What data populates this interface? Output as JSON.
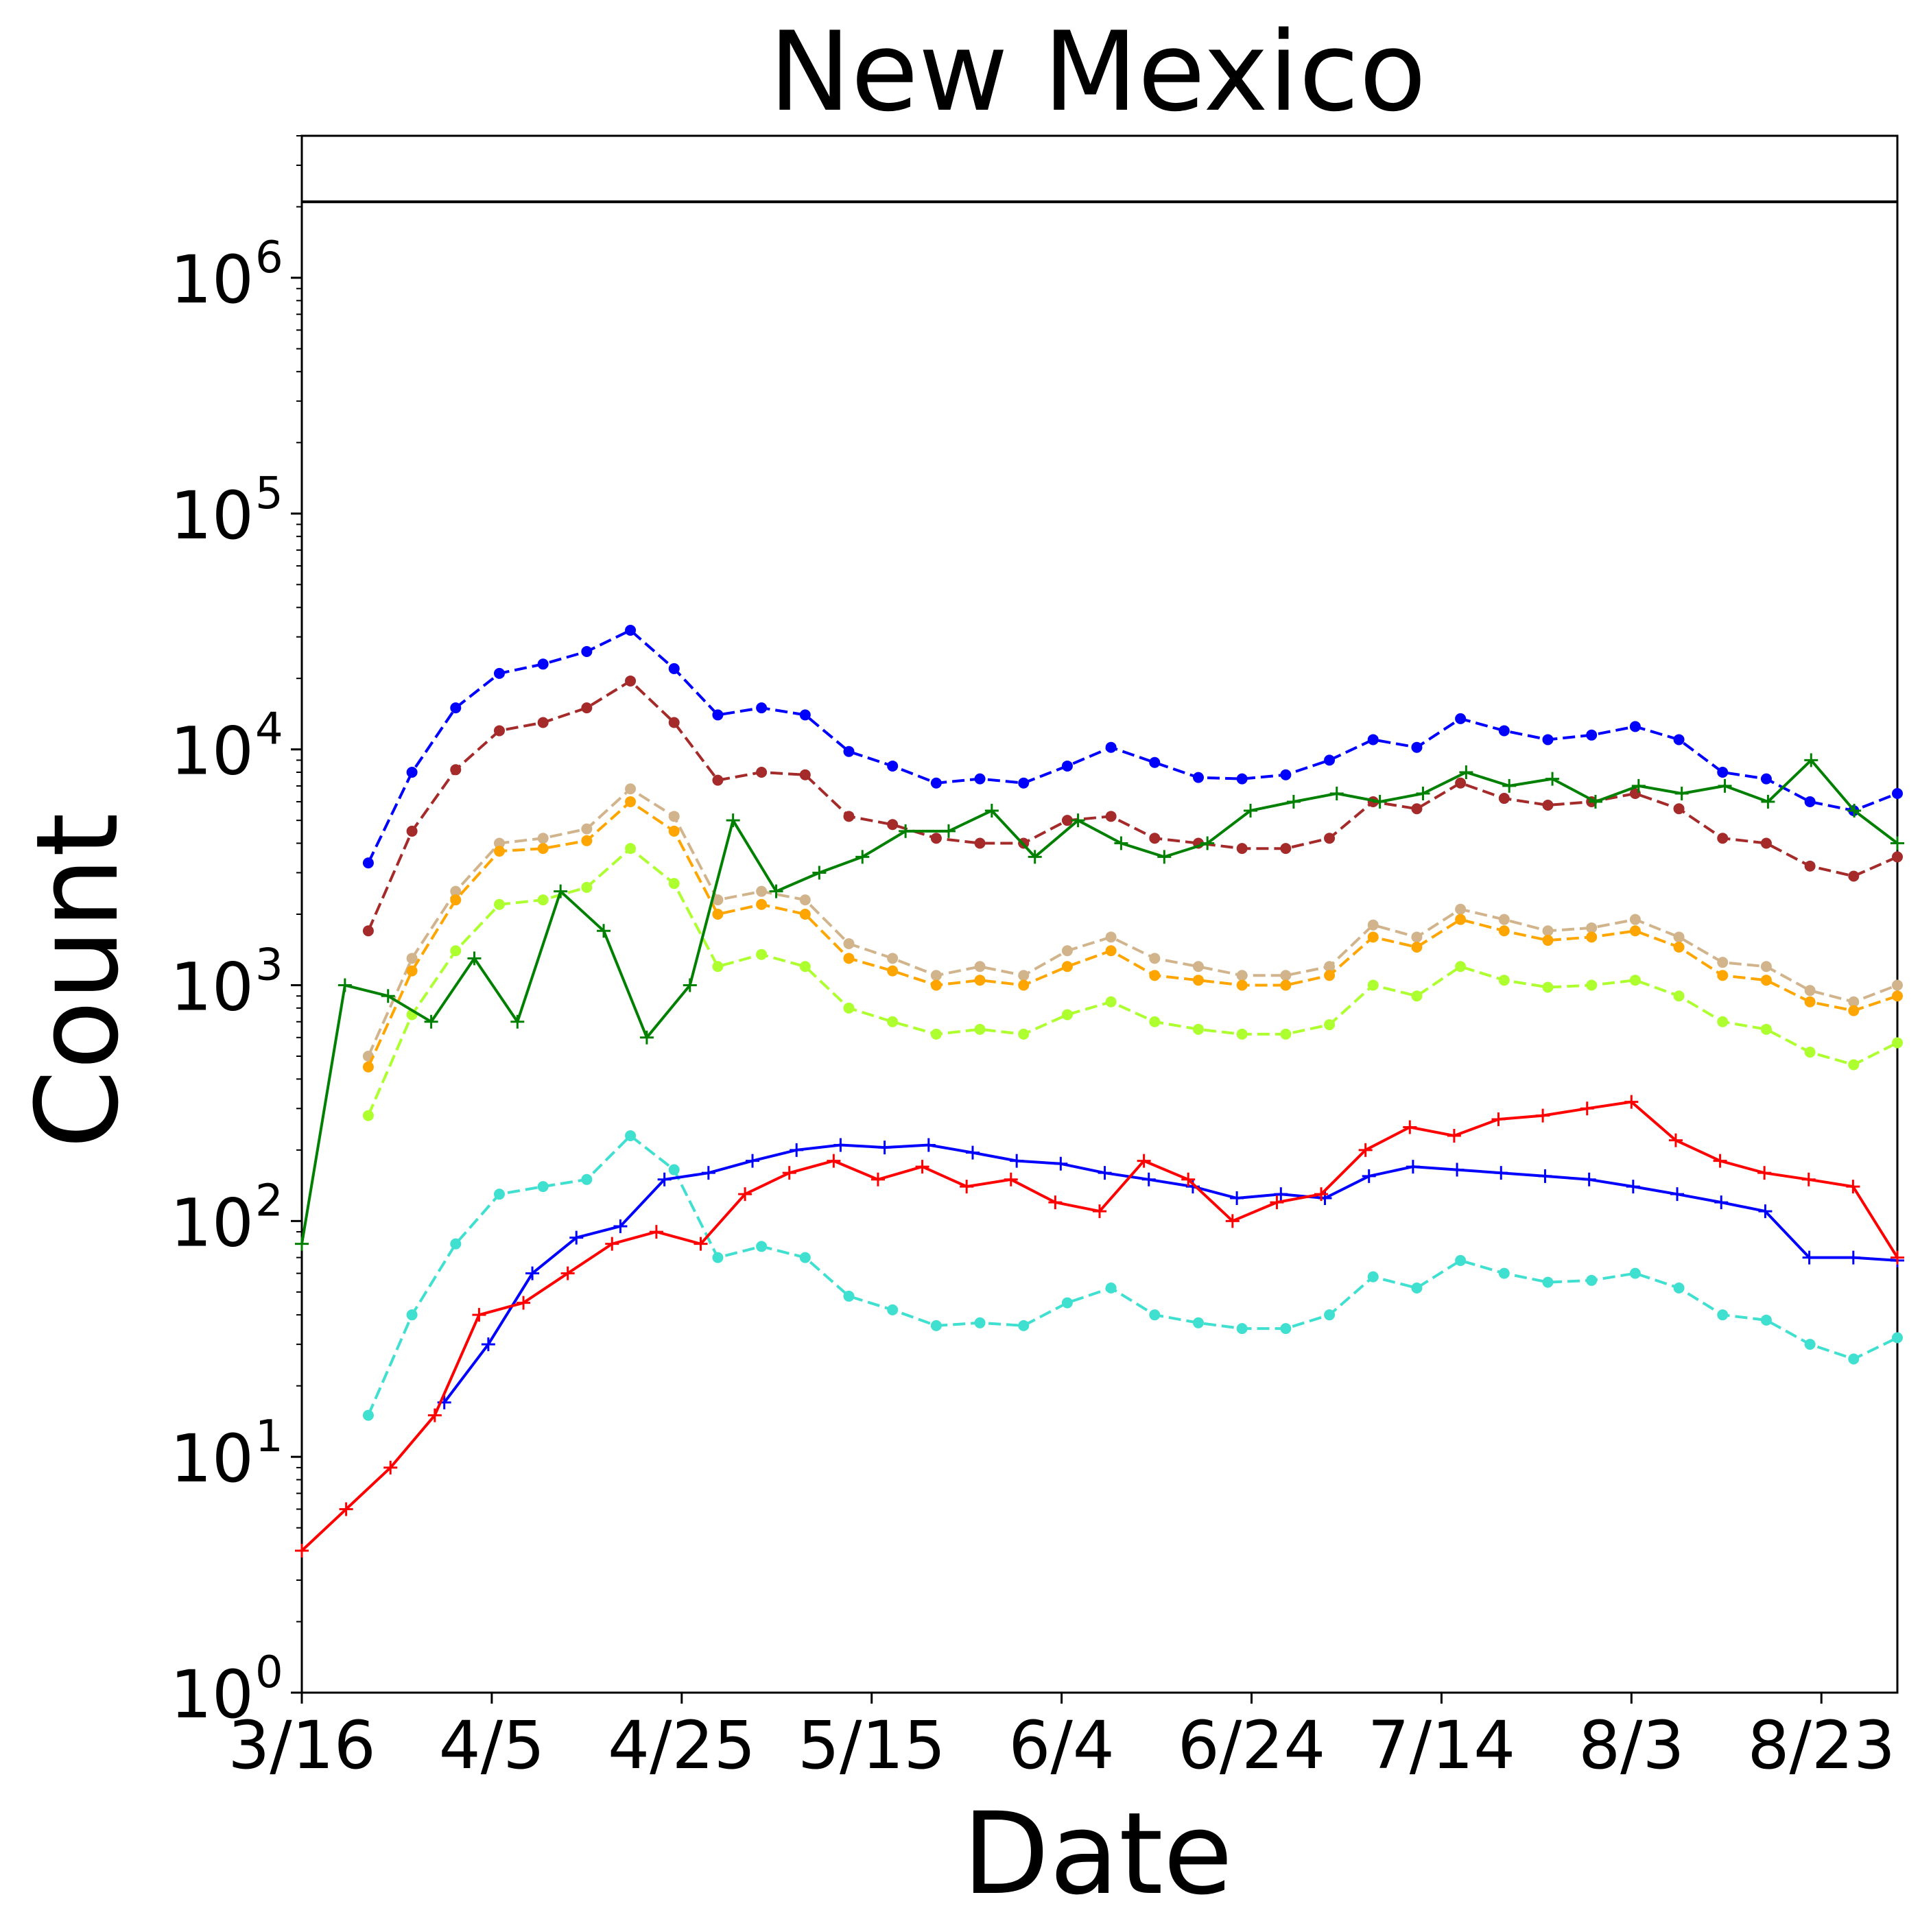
{
  "chart_data": {
    "type": "line",
    "title": "New Mexico",
    "xlabel": "Date",
    "ylabel": "Count",
    "yscale": "log",
    "ylim": [
      1,
      4000000
    ],
    "reference_line": 2100000,
    "x_tick_labels": [
      "3/16",
      "4/5",
      "4/25",
      "5/15",
      "6/4",
      "6/24",
      "7/14",
      "8/3",
      "8/23"
    ],
    "y_tick_labels": [
      {
        "base": "10",
        "exp": "0"
      },
      {
        "base": "10",
        "exp": "1"
      },
      {
        "base": "10",
        "exp": "2"
      },
      {
        "base": "10",
        "exp": "3"
      },
      {
        "base": "10",
        "exp": "4"
      },
      {
        "base": "10",
        "exp": "5"
      },
      {
        "base": "10",
        "exp": "6"
      }
    ],
    "x_start": "3/16",
    "x_end": "8/31",
    "series": [
      {
        "color": "#0000ff",
        "style": "dashed",
        "marker": "dot",
        "start": "3/23",
        "values": [
          3300,
          8000,
          15000,
          21000,
          23000,
          26000,
          32000,
          22000,
          14000,
          15000,
          14000,
          9800,
          8500,
          7200,
          7500,
          7200,
          8500,
          10200,
          8800,
          7600,
          7500,
          7800,
          9000,
          11000,
          10200,
          13500,
          12000,
          11000,
          11500,
          12500,
          11000,
          8000,
          7500,
          6000,
          5500,
          6500
        ]
      },
      {
        "color": "#a52a2a",
        "style": "dashed",
        "marker": "dot",
        "start": "3/23",
        "values": [
          1700,
          4500,
          8200,
          12000,
          13000,
          15000,
          19500,
          13000,
          7400,
          8000,
          7800,
          5200,
          4800,
          4200,
          4000,
          4000,
          5000,
          5200,
          4200,
          4000,
          3800,
          3800,
          4200,
          6000,
          5600,
          7200,
          6200,
          5800,
          6000,
          6500,
          5600,
          4200,
          4000,
          3200,
          2900,
          3500
        ]
      },
      {
        "color": "#d2b48c",
        "style": "dashed",
        "marker": "dot",
        "start": "3/23",
        "values": [
          500,
          1300,
          2500,
          4000,
          4200,
          4600,
          6800,
          5200,
          2300,
          2500,
          2300,
          1500,
          1300,
          1100,
          1200,
          1100,
          1400,
          1600,
          1300,
          1200,
          1100,
          1100,
          1200,
          1800,
          1600,
          2100,
          1900,
          1700,
          1750,
          1900,
          1600,
          1250,
          1200,
          950,
          850,
          1000
        ]
      },
      {
        "color": "#ffa500",
        "style": "dashed",
        "marker": "dot",
        "start": "3/23",
        "values": [
          450,
          1150,
          2300,
          3700,
          3800,
          4100,
          6000,
          4500,
          2000,
          2200,
          2000,
          1300,
          1150,
          1000,
          1050,
          1000,
          1200,
          1400,
          1100,
          1050,
          1000,
          1000,
          1100,
          1600,
          1450,
          1900,
          1700,
          1550,
          1600,
          1700,
          1450,
          1100,
          1050,
          850,
          780,
          900
        ]
      },
      {
        "color": "#adff2f",
        "style": "dashed",
        "marker": "dot",
        "start": "3/23",
        "values": [
          280,
          750,
          1400,
          2200,
          2300,
          2600,
          3800,
          2700,
          1200,
          1350,
          1200,
          800,
          700,
          620,
          650,
          620,
          750,
          850,
          700,
          650,
          620,
          620,
          680,
          1000,
          900,
          1200,
          1050,
          980,
          1000,
          1050,
          900,
          700,
          650,
          520,
          460,
          570
        ]
      },
      {
        "color": "#40e0d0",
        "style": "dashed",
        "marker": "dot",
        "start": "3/23",
        "values": [
          15,
          40,
          80,
          130,
          140,
          150,
          230,
          165,
          70,
          78,
          70,
          48,
          42,
          36,
          37,
          36,
          45,
          52,
          40,
          37,
          35,
          35,
          40,
          58,
          52,
          68,
          60,
          55,
          56,
          60,
          52,
          40,
          38,
          30,
          26,
          32
        ]
      },
      {
        "color": "#0000ff",
        "style": "solid",
        "marker": "plus",
        "start": "3/31",
        "values": [
          17,
          30,
          60,
          85,
          95,
          150,
          160,
          180,
          200,
          210,
          205,
          210,
          195,
          180,
          175,
          160,
          150,
          140,
          125,
          130,
          125,
          155,
          170,
          165,
          160,
          155,
          150,
          140,
          130,
          120,
          110,
          70,
          70,
          68
        ]
      },
      {
        "color": "#008000",
        "style": "solid",
        "marker": "plus",
        "start": "3/16",
        "values": [
          80,
          1000,
          900,
          700,
          1300,
          700,
          2500,
          1700,
          600,
          1000,
          5000,
          2500,
          3000,
          3500,
          4500,
          4500,
          5500,
          3500,
          5000,
          4000,
          3500,
          4000,
          5500,
          6000,
          6500,
          6000,
          6500,
          8000,
          7000,
          7500,
          6000,
          7000,
          6500,
          7000,
          6000,
          9000,
          5500,
          4000
        ]
      },
      {
        "color": "#ff0000",
        "style": "solid",
        "marker": "plus",
        "start": "3/16",
        "values": [
          4,
          6,
          9,
          15,
          40,
          45,
          60,
          80,
          90,
          80,
          130,
          160,
          180,
          150,
          170,
          140,
          150,
          120,
          110,
          180,
          150,
          100,
          120,
          130,
          200,
          250,
          230,
          270,
          280,
          300,
          320,
          220,
          180,
          160,
          150,
          140,
          70
        ]
      }
    ]
  }
}
